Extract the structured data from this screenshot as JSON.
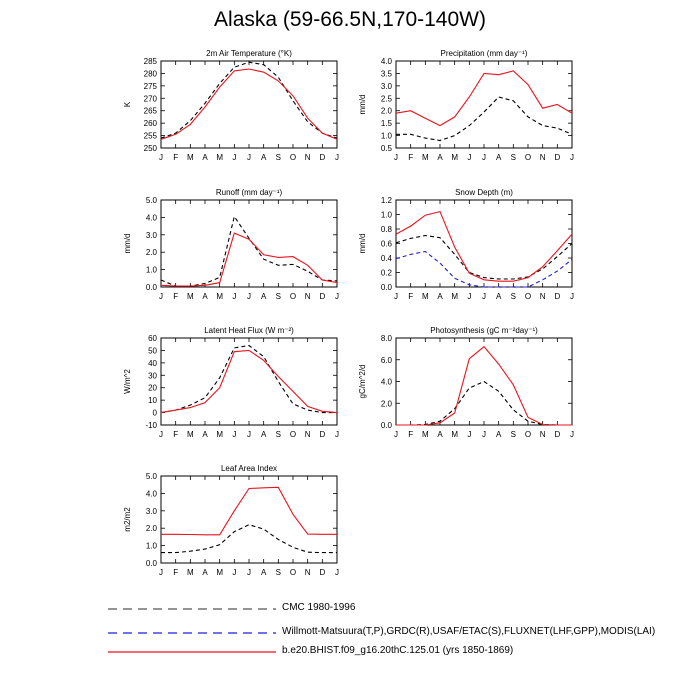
{
  "title": "Alaska (59-66.5N,170-140W)",
  "colors": {
    "cmc": "#000000",
    "obs": "#1f1fdc",
    "model": "#e8141e"
  },
  "legend": [
    {
      "key": "cmc",
      "label": "CMC 1980-1996",
      "color": "#555555",
      "dash": "9,6"
    },
    {
      "key": "obs",
      "label": "Willmott-Matsuura(T,P),GRDC(R),USAF/ETAC(S),FLUXNET(LHF,GPP),MODIS(LAI)",
      "color": "#1f1fdc",
      "dash": "9,6"
    },
    {
      "key": "model",
      "label": "b.e20.BHIST.f09_g16.20thC.125.01 (yrs 1850-1869)",
      "color": "#e8141e",
      "dash": ""
    }
  ],
  "chart_data": [
    {
      "type": "line",
      "title": "2m Air Temperature (°K)",
      "ylabel": "K",
      "x": [
        "J",
        "F",
        "M",
        "A",
        "M",
        "J",
        "J",
        "A",
        "S",
        "O",
        "N",
        "D",
        "J"
      ],
      "ylim": [
        250,
        285
      ],
      "yticks": [
        "250",
        "255",
        "260",
        "265",
        "270",
        "275",
        "280",
        "285"
      ],
      "series": [
        {
          "style": "cmc",
          "values": [
            254.0,
            256.0,
            261.0,
            268.0,
            276.0,
            282.5,
            284.5,
            283.5,
            278.5,
            269.0,
            260.5,
            256.0,
            254.0
          ]
        },
        {
          "style": "model",
          "values": [
            253.5,
            255.5,
            259.5,
            266.5,
            274.5,
            281.0,
            281.8,
            280.5,
            277.0,
            271.0,
            262.0,
            256.0,
            253.5
          ]
        }
      ]
    },
    {
      "type": "line",
      "title": "Precipitation (mm day⁻¹)",
      "ylabel": "mm/d",
      "x": [
        "J",
        "F",
        "M",
        "A",
        "M",
        "J",
        "J",
        "A",
        "S",
        "O",
        "N",
        "D",
        "J"
      ],
      "ylim": [
        0.5,
        4.0
      ],
      "yticks": [
        "0.5",
        "1.0",
        "1.5",
        "2.0",
        "2.5",
        "3.0",
        "3.5",
        "4.0"
      ],
      "series": [
        {
          "style": "cmc",
          "values": [
            1.05,
            1.05,
            0.9,
            0.8,
            1.0,
            1.4,
            1.95,
            2.55,
            2.4,
            1.75,
            1.4,
            1.3,
            1.05
          ]
        },
        {
          "style": "model",
          "values": [
            1.9,
            2.0,
            1.7,
            1.4,
            1.75,
            2.55,
            3.5,
            3.45,
            3.6,
            3.05,
            2.1,
            2.25,
            1.9
          ]
        }
      ]
    },
    {
      "type": "line",
      "title": "Runoff (mm day⁻¹)",
      "ylabel": "mm/d",
      "x": [
        "J",
        "F",
        "M",
        "A",
        "M",
        "J",
        "J",
        "A",
        "S",
        "O",
        "N",
        "D",
        "J"
      ],
      "ylim": [
        0.0,
        5.0
      ],
      "yticks": [
        "0.0",
        "1.0",
        "2.0",
        "3.0",
        "4.0",
        "5.0"
      ],
      "series": [
        {
          "style": "cmc",
          "values": [
            0.4,
            0.05,
            0.05,
            0.2,
            0.55,
            4.05,
            2.8,
            1.6,
            1.25,
            1.3,
            0.9,
            0.4,
            0.35
          ]
        },
        {
          "style": "model",
          "values": [
            0.1,
            0.05,
            0.05,
            0.1,
            0.25,
            3.1,
            2.75,
            1.85,
            1.7,
            1.75,
            1.25,
            0.4,
            0.25
          ]
        }
      ]
    },
    {
      "type": "line",
      "title": "Snow Depth (m)",
      "ylabel": "mm/d",
      "x": [
        "J",
        "F",
        "M",
        "A",
        "M",
        "J",
        "J",
        "A",
        "S",
        "O",
        "N",
        "D",
        "J"
      ],
      "ylim": [
        0.0,
        1.2
      ],
      "yticks": [
        "0.0",
        "0.2",
        "0.4",
        "0.6",
        "0.8",
        "1.0",
        "1.2"
      ],
      "series": [
        {
          "style": "cmc",
          "values": [
            0.61,
            0.67,
            0.71,
            0.68,
            0.45,
            0.2,
            0.13,
            0.11,
            0.11,
            0.14,
            0.25,
            0.42,
            0.6
          ]
        },
        {
          "style": "obs",
          "values": [
            0.39,
            0.45,
            0.49,
            0.33,
            0.12,
            0.03,
            0.0,
            0.0,
            0.0,
            0.0,
            0.1,
            0.22,
            0.38
          ]
        },
        {
          "style": "model",
          "values": [
            0.73,
            0.84,
            0.99,
            1.04,
            0.55,
            0.19,
            0.1,
            0.08,
            0.08,
            0.13,
            0.28,
            0.5,
            0.73
          ]
        }
      ]
    },
    {
      "type": "line",
      "title": "Latent Heat Flux (W m⁻²)",
      "ylabel": "W/m^2",
      "x": [
        "J",
        "F",
        "M",
        "A",
        "M",
        "J",
        "J",
        "A",
        "S",
        "O",
        "N",
        "D",
        "J"
      ],
      "ylim": [
        -10,
        60
      ],
      "yticks": [
        "-10",
        "0",
        "10",
        "20",
        "30",
        "40",
        "50",
        "60"
      ],
      "series": [
        {
          "style": "cmc",
          "values": [
            0,
            2,
            6,
            12,
            28,
            52,
            54,
            45,
            25,
            7,
            2,
            0,
            0
          ]
        },
        {
          "style": "model",
          "values": [
            0,
            2,
            4,
            8,
            20,
            49,
            50,
            42,
            29,
            17,
            5,
            1,
            0
          ]
        }
      ]
    },
    {
      "type": "line",
      "title": "Photosynthesis (gC m⁻²day⁻¹)",
      "ylabel": "gC/m^2/d",
      "x": [
        "J",
        "F",
        "M",
        "A",
        "M",
        "J",
        "J",
        "A",
        "S",
        "O",
        "N",
        "D",
        "J"
      ],
      "ylim": [
        0.0,
        8.0
      ],
      "yticks": [
        "0.0",
        "2.0",
        "4.0",
        "6.0",
        "8.0"
      ],
      "series": [
        {
          "style": "cmc",
          "values": [
            0,
            0,
            0.05,
            0.35,
            1.5,
            3.4,
            4.0,
            3.1,
            1.4,
            0.35,
            0.05,
            0,
            0
          ]
        },
        {
          "style": "model",
          "values": [
            0,
            0,
            0,
            0.2,
            1.1,
            6.1,
            7.2,
            5.6,
            3.7,
            0.7,
            0.05,
            0,
            0
          ]
        }
      ]
    },
    {
      "type": "line",
      "title": "Leaf Area Index",
      "ylabel": "m2/m2",
      "x": [
        "J",
        "F",
        "M",
        "A",
        "M",
        "J",
        "J",
        "A",
        "S",
        "O",
        "N",
        "D",
        "J"
      ],
      "ylim": [
        0.0,
        5.0
      ],
      "yticks": [
        "0.0",
        "1.0",
        "2.0",
        "3.0",
        "4.0",
        "5.0"
      ],
      "series": [
        {
          "style": "cmc",
          "values": [
            0.6,
            0.6,
            0.68,
            0.8,
            1.05,
            1.8,
            2.2,
            1.95,
            1.35,
            0.9,
            0.62,
            0.6,
            0.6
          ]
        },
        {
          "style": "model",
          "values": [
            1.65,
            1.65,
            1.64,
            1.62,
            1.62,
            3.0,
            4.28,
            4.32,
            4.35,
            2.8,
            1.66,
            1.65,
            1.65
          ]
        }
      ]
    }
  ]
}
